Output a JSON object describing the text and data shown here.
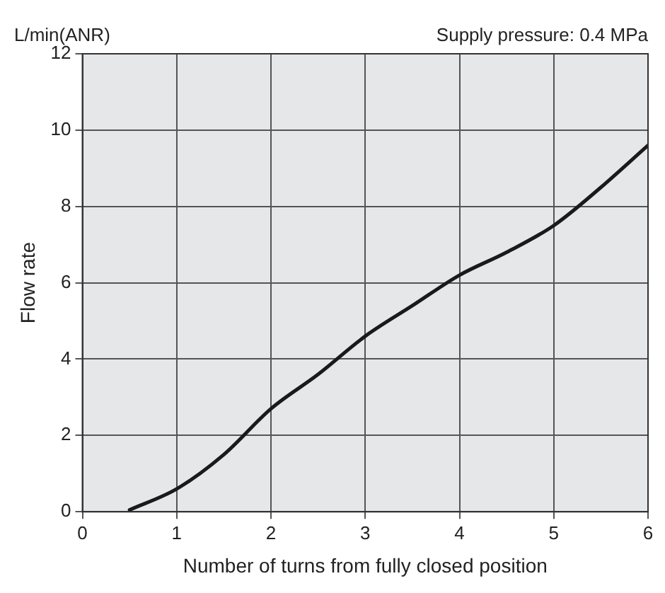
{
  "chart_data": {
    "type": "line",
    "xlabel": "Number of turns from fully closed position",
    "ylabel": "Flow rate",
    "annotations": [
      "L/min(ANR)",
      "Supply pressure: 0.4 MPa"
    ],
    "x": [
      0.5,
      1,
      1.5,
      2,
      2.5,
      3,
      3.5,
      4,
      4.5,
      5,
      5.5,
      6
    ],
    "series": [
      {
        "color": "#1a1a1a",
        "values": [
          0.05,
          0.6,
          1.5,
          2.7,
          3.6,
          4.6,
          5.4,
          6.2,
          6.8,
          7.5,
          8.5,
          9.6
        ]
      }
    ],
    "xlim": [
      0,
      6
    ],
    "xticks": [
      0,
      1,
      2,
      3,
      4,
      5,
      6
    ],
    "ylim": [
      0,
      12
    ],
    "yticks": [
      0,
      2,
      4,
      6,
      8,
      10,
      12
    ],
    "grid": true,
    "legend": false,
    "marker": "none",
    "line_style": "solid"
  }
}
